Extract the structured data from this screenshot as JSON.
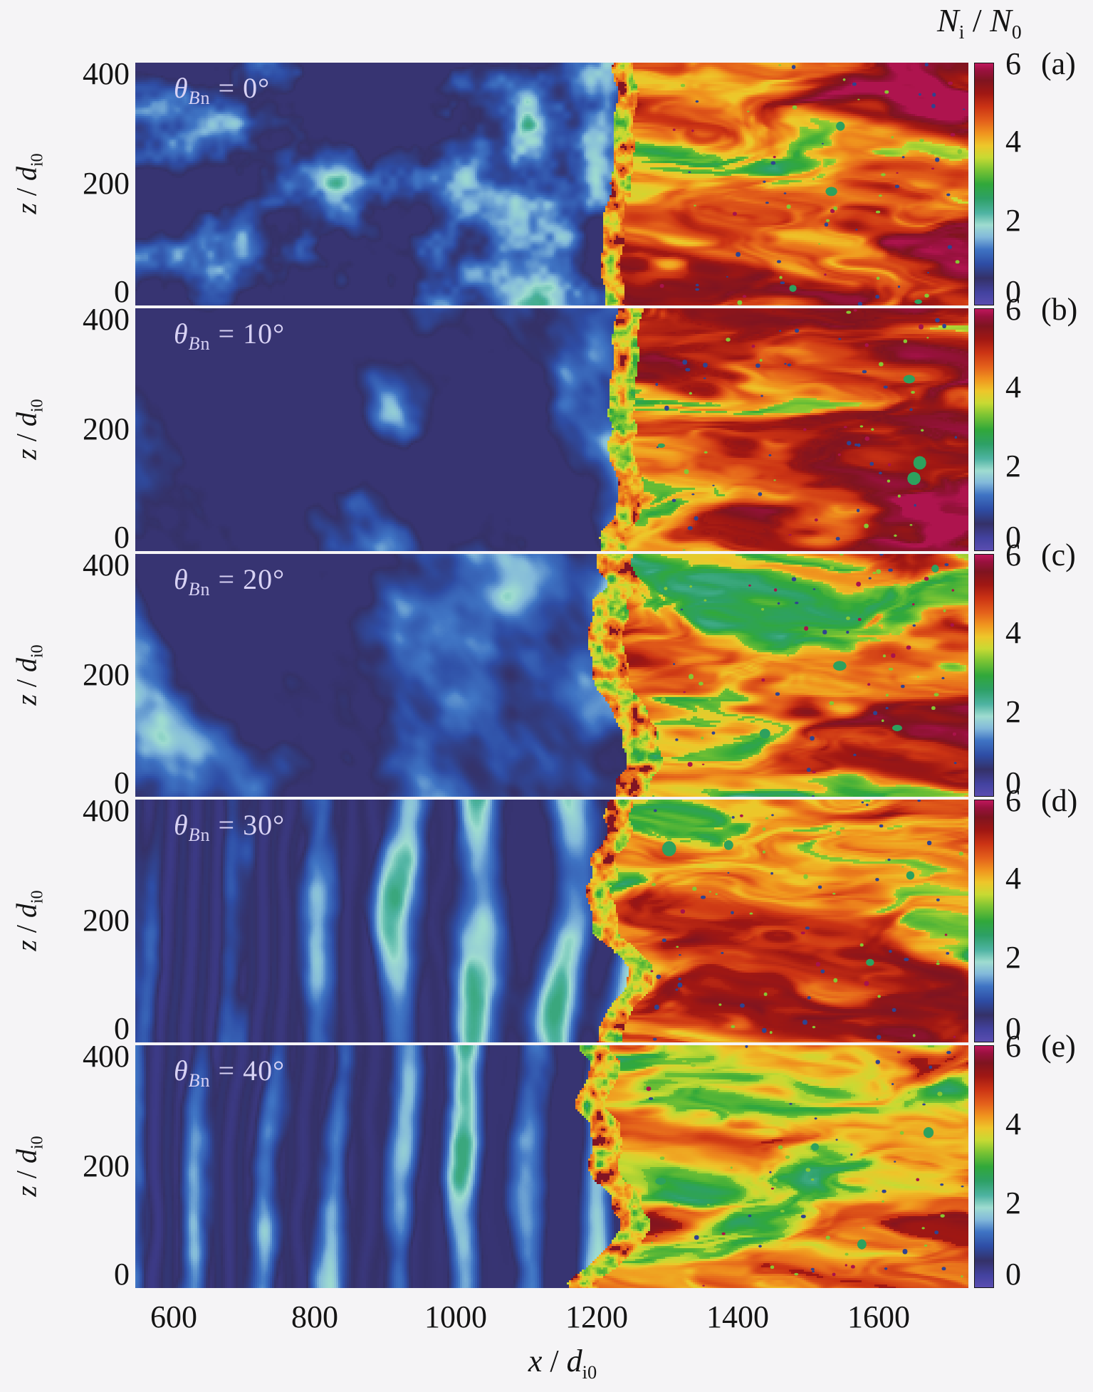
{
  "figure": {
    "background": "#f5f4f6",
    "text_color": "#141414",
    "panel_label_color": "#d8d2f4"
  },
  "header": {
    "var1": "N",
    "sub1": "i",
    "sep": " / ",
    "var2": "N",
    "sub2": "0"
  },
  "labels": {
    "theta_symbol": "θ",
    "theta_sub_b": "B",
    "theta_sub_n": "n",
    "theta_eq": " = "
  },
  "axes": {
    "x": {
      "label_var": "x",
      "label_sep": " / ",
      "label_base": "d",
      "label_sub": "i0",
      "range": [
        550,
        1730
      ],
      "ticks": [
        600,
        800,
        1000,
        1200,
        1400,
        1600
      ],
      "ticks_display": [
        "600",
        "800",
        "1000",
        "1200",
        "1400",
        "1600"
      ]
    },
    "z": {
      "label_var": "z",
      "label_sep": " / ",
      "label_base": "d",
      "label_sub": "i0",
      "range": [
        0,
        400
      ],
      "ticks": [
        400,
        200,
        0
      ],
      "ticks_display": [
        "400",
        "200",
        "0"
      ]
    },
    "colorbar": {
      "range": [
        0,
        6
      ],
      "ticks": [
        6,
        4,
        2,
        0
      ],
      "ticks_display": [
        "6",
        "4",
        "2",
        "0"
      ]
    }
  },
  "chart_data": {
    "type": "heatmap",
    "quantity": "Ni / N0 (ion density normalized to upstream density)",
    "x_range": [
      550,
      1730
    ],
    "z_range": [
      0,
      400
    ],
    "value_range": [
      0,
      6
    ],
    "grid": false,
    "layout": "5 vertically stacked panels sharing the x axis, each with its own 0-6 colorbar on the right",
    "colormap_stops": [
      [
        0.0,
        "#5a4db0"
      ],
      [
        0.05,
        "#4342a0"
      ],
      [
        0.11,
        "#343168"
      ],
      [
        0.17,
        "#2e4da5"
      ],
      [
        0.23,
        "#3f74c4"
      ],
      [
        0.28,
        "#82b8da"
      ],
      [
        0.33,
        "#9fdcd0"
      ],
      [
        0.38,
        "#4eb3a2"
      ],
      [
        0.44,
        "#2da066"
      ],
      [
        0.5,
        "#31a83a"
      ],
      [
        0.56,
        "#7cc433"
      ],
      [
        0.61,
        "#c8da33"
      ],
      [
        0.66,
        "#eec62a"
      ],
      [
        0.71,
        "#f0941e"
      ],
      [
        0.76,
        "#e4611b"
      ],
      [
        0.82,
        "#cb3314"
      ],
      [
        0.875,
        "#a01713"
      ],
      [
        0.93,
        "#7f1420"
      ],
      [
        0.97,
        "#99113e"
      ],
      [
        1.0,
        "#c0175c"
      ]
    ],
    "upstream_density_typical": [
      0.6,
      2.2
    ],
    "downstream_density_typical": [
      3.0,
      6.0
    ],
    "panels": [
      {
        "letter": "(a)",
        "theta_Bn_deg": 0,
        "theta_value_display": "0°",
        "shock_front_x": 1215,
        "texture": {
          "seed": 1,
          "shockFrac": 0.565,
          "rippleAmp": 0.02,
          "scale": 1.0,
          "ang": 0.05,
          "aspect": 1.0,
          "stripes": 0,
          "stripeFreq": 0,
          "ripples": 0,
          "downBase": 4.55,
          "rightShift": 0.55,
          "frontWidth": 0.024
        }
      },
      {
        "letter": "(b)",
        "theta_Bn_deg": 10,
        "theta_value_display": "10°",
        "shock_front_x": 1220,
        "texture": {
          "seed": 2,
          "shockFrac": 0.565,
          "rippleAmp": 0.034,
          "scale": 0.78,
          "ang": 0.55,
          "aspect": 0.75,
          "stripes": 0,
          "stripeFreq": 0,
          "ripples": 0,
          "downBase": 4.7,
          "rightShift": 0.55,
          "frontWidth": 0.03
        }
      },
      {
        "letter": "(c)",
        "theta_Bn_deg": 20,
        "theta_value_display": "20°",
        "shock_front_x": 1225,
        "texture": {
          "seed": 3,
          "shockFrac": 0.57,
          "rippleAmp": 0.05,
          "scale": 0.72,
          "ang": 0.65,
          "aspect": 0.7,
          "stripes": 0,
          "stripeFreq": 0,
          "ripples": 0,
          "downBase": 4.6,
          "rightShift": 0.4,
          "frontWidth": 0.042
        }
      },
      {
        "letter": "(d)",
        "theta_Bn_deg": 30,
        "theta_value_display": "30°",
        "shock_front_x": 1215,
        "texture": {
          "seed": 4,
          "shockFrac": 0.56,
          "rippleAmp": 0.05,
          "scale": 0.8,
          "ang": 0.15,
          "aspect": 0.6,
          "stripes": 1,
          "stripeFreq": 0.052,
          "ripples": 1,
          "downBase": 4.55,
          "rightShift": 0.3,
          "frontWidth": 0.03
        }
      },
      {
        "letter": "(e)",
        "theta_Bn_deg": 40,
        "theta_value_display": "40°",
        "shock_front_x": 1210,
        "texture": {
          "seed": 5,
          "shockFrac": 0.555,
          "rippleAmp": 0.05,
          "scale": 0.82,
          "ang": 0.1,
          "aspect": 0.6,
          "stripes": 1,
          "stripeFreq": 0.068,
          "ripples": 1,
          "downBase": 4.3,
          "rightShift": 0.05,
          "frontWidth": 0.036
        }
      }
    ]
  }
}
